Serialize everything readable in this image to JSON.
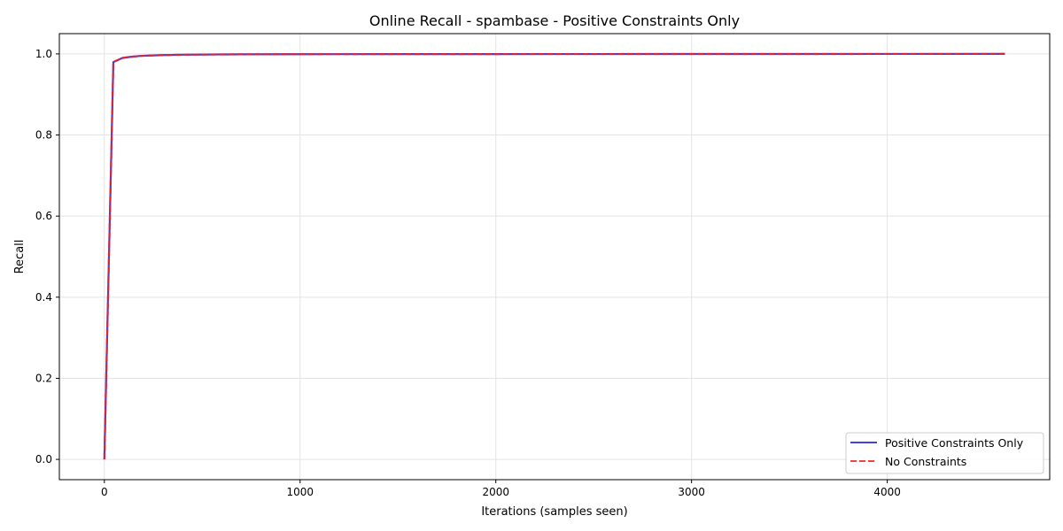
{
  "chart_data": {
    "type": "line",
    "title": "Online Recall - spambase - Positive Constraints Only",
    "xlabel": "Iterations (samples seen)",
    "ylabel": "Recall",
    "xlim": [
      -230,
      4830
    ],
    "ylim": [
      -0.05,
      1.05
    ],
    "xticks": [
      0,
      1000,
      2000,
      3000,
      4000
    ],
    "xtick_labels": [
      "0",
      "1000",
      "2000",
      "3000",
      "4000"
    ],
    "yticks": [
      0.0,
      0.2,
      0.4,
      0.6,
      0.8,
      1.0
    ],
    "ytick_labels": [
      "0.0",
      "0.2",
      "0.4",
      "0.6",
      "0.8",
      "1.0"
    ],
    "grid": true,
    "legend_position": "lower-right",
    "series": [
      {
        "name": "Positive Constraints Only",
        "color": "#2020e0",
        "style": "solid",
        "x": [
          0,
          46,
          92,
          138,
          184,
          230,
          300,
          400,
          500,
          700,
          1000,
          1500,
          2000,
          2500,
          3000,
          3500,
          4000,
          4601
        ],
        "y": [
          0.0,
          0.98,
          0.99,
          0.993,
          0.995,
          0.996,
          0.997,
          0.998,
          0.9985,
          0.999,
          0.9993,
          0.9995,
          0.9996,
          0.9997,
          0.9998,
          0.9998,
          0.9999,
          1.0
        ]
      },
      {
        "name": "No Constraints",
        "color": "#ee2222",
        "style": "dashed",
        "x": [
          0,
          46,
          92,
          138,
          184,
          230,
          300,
          400,
          500,
          700,
          1000,
          1500,
          2000,
          2500,
          3000,
          3500,
          4000,
          4601
        ],
        "y": [
          0.0,
          0.98,
          0.99,
          0.993,
          0.995,
          0.996,
          0.997,
          0.998,
          0.9985,
          0.999,
          0.9993,
          0.9995,
          0.9996,
          0.9997,
          0.9998,
          0.9998,
          0.9999,
          1.0
        ]
      }
    ]
  }
}
